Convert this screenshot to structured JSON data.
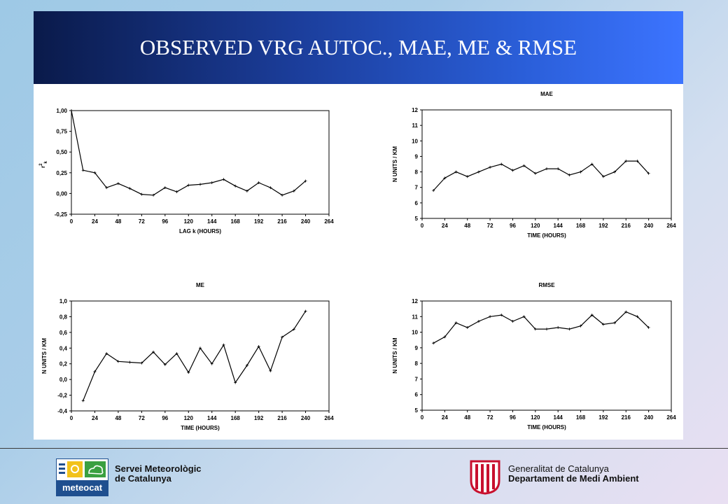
{
  "slide": {
    "title": "OBSERVED VRG AUTOC., MAE, ME & RMSE"
  },
  "footer": {
    "left_line1": "Servei Meteorològic",
    "left_line2": "de Catalunya",
    "logo_word": "meteocat",
    "right_line1": "Generalitat de Catalunya",
    "right_line2": "Departament de Medi Ambient"
  },
  "chart_data": [
    {
      "id": "autoc",
      "type": "line",
      "title": "",
      "xlabel": "LAG k (HOURS)",
      "ylabel": "r",
      "ylabel_sup": "2",
      "ylabel_sub": "k",
      "xlim": [
        0,
        264
      ],
      "ylim": [
        -0.25,
        1.0
      ],
      "xticks": [
        "0",
        "24",
        "48",
        "72",
        "96",
        "120",
        "144",
        "168",
        "192",
        "216",
        "240",
        "264"
      ],
      "yticks": [
        "1,00",
        "0,75",
        "0,50",
        "0,25",
        "0,00",
        "-0,25"
      ],
      "grid": false,
      "x": [
        0,
        12,
        24,
        36,
        48,
        60,
        72,
        84,
        96,
        108,
        120,
        132,
        144,
        156,
        168,
        180,
        192,
        204,
        216,
        228,
        240
      ],
      "values": [
        1.0,
        0.28,
        0.25,
        0.07,
        0.12,
        0.06,
        -0.01,
        -0.02,
        0.07,
        0.02,
        0.1,
        0.11,
        0.13,
        0.17,
        0.09,
        0.03,
        0.13,
        0.07,
        -0.02,
        0.03,
        0.15
      ]
    },
    {
      "id": "mae",
      "type": "line",
      "title": "MAE",
      "xlabel": "TIME (HOURS)",
      "ylabel": "N UNITS / KM",
      "xlim": [
        0,
        264
      ],
      "ylim": [
        5,
        12
      ],
      "xticks": [
        "0",
        "24",
        "48",
        "72",
        "96",
        "120",
        "144",
        "168",
        "192",
        "216",
        "240",
        "264"
      ],
      "yticks": [
        "12",
        "11",
        "10",
        "9",
        "8",
        "7",
        "6",
        "5"
      ],
      "grid": false,
      "x": [
        12,
        24,
        36,
        48,
        60,
        72,
        84,
        96,
        108,
        120,
        132,
        144,
        156,
        168,
        180,
        192,
        204,
        216,
        228,
        240
      ],
      "values": [
        6.8,
        7.6,
        8.0,
        7.7,
        8.0,
        8.3,
        8.5,
        8.1,
        8.4,
        7.9,
        8.2,
        8.2,
        7.8,
        8.0,
        8.5,
        7.7,
        8.0,
        8.7,
        8.7,
        7.9
      ]
    },
    {
      "id": "me",
      "type": "line",
      "title": "ME",
      "xlabel": "TIME (HOURS)",
      "ylabel": "N UNITS / KM",
      "xlim": [
        0,
        264
      ],
      "ylim": [
        -0.4,
        1.0
      ],
      "xticks": [
        "0",
        "24",
        "48",
        "72",
        "96",
        "120",
        "144",
        "168",
        "192",
        "216",
        "240",
        "264"
      ],
      "yticks": [
        "1,0",
        "0,8",
        "0,6",
        "0,4",
        "0,2",
        "0,0",
        "-0,2",
        "-0,4"
      ],
      "grid": false,
      "x": [
        12,
        24,
        36,
        48,
        60,
        72,
        84,
        96,
        108,
        120,
        132,
        144,
        156,
        168,
        180,
        192,
        204,
        216,
        228,
        240
      ],
      "values": [
        -0.27,
        0.1,
        0.33,
        0.23,
        0.22,
        0.21,
        0.35,
        0.19,
        0.33,
        0.09,
        0.4,
        0.2,
        0.44,
        -0.04,
        0.18,
        0.42,
        0.11,
        0.54,
        0.64,
        0.87
      ]
    },
    {
      "id": "rmse",
      "type": "line",
      "title": "RMSE",
      "xlabel": "TIME (HOURS)",
      "ylabel": "N UNITS / KM",
      "xlim": [
        0,
        264
      ],
      "ylim": [
        5,
        12
      ],
      "xticks": [
        "0",
        "24",
        "48",
        "72",
        "96",
        "120",
        "144",
        "168",
        "192",
        "216",
        "240",
        "264"
      ],
      "yticks": [
        "12",
        "11",
        "10",
        "9",
        "8",
        "7",
        "6",
        "5"
      ],
      "grid": false,
      "x": [
        12,
        24,
        36,
        48,
        60,
        72,
        84,
        96,
        108,
        120,
        132,
        144,
        156,
        168,
        180,
        192,
        204,
        216,
        228,
        240
      ],
      "values": [
        9.3,
        9.7,
        10.6,
        10.3,
        10.7,
        11.0,
        11.1,
        10.7,
        11.0,
        10.2,
        10.2,
        10.3,
        10.2,
        10.4,
        11.1,
        10.5,
        10.6,
        11.3,
        11.0,
        10.3
      ]
    }
  ]
}
